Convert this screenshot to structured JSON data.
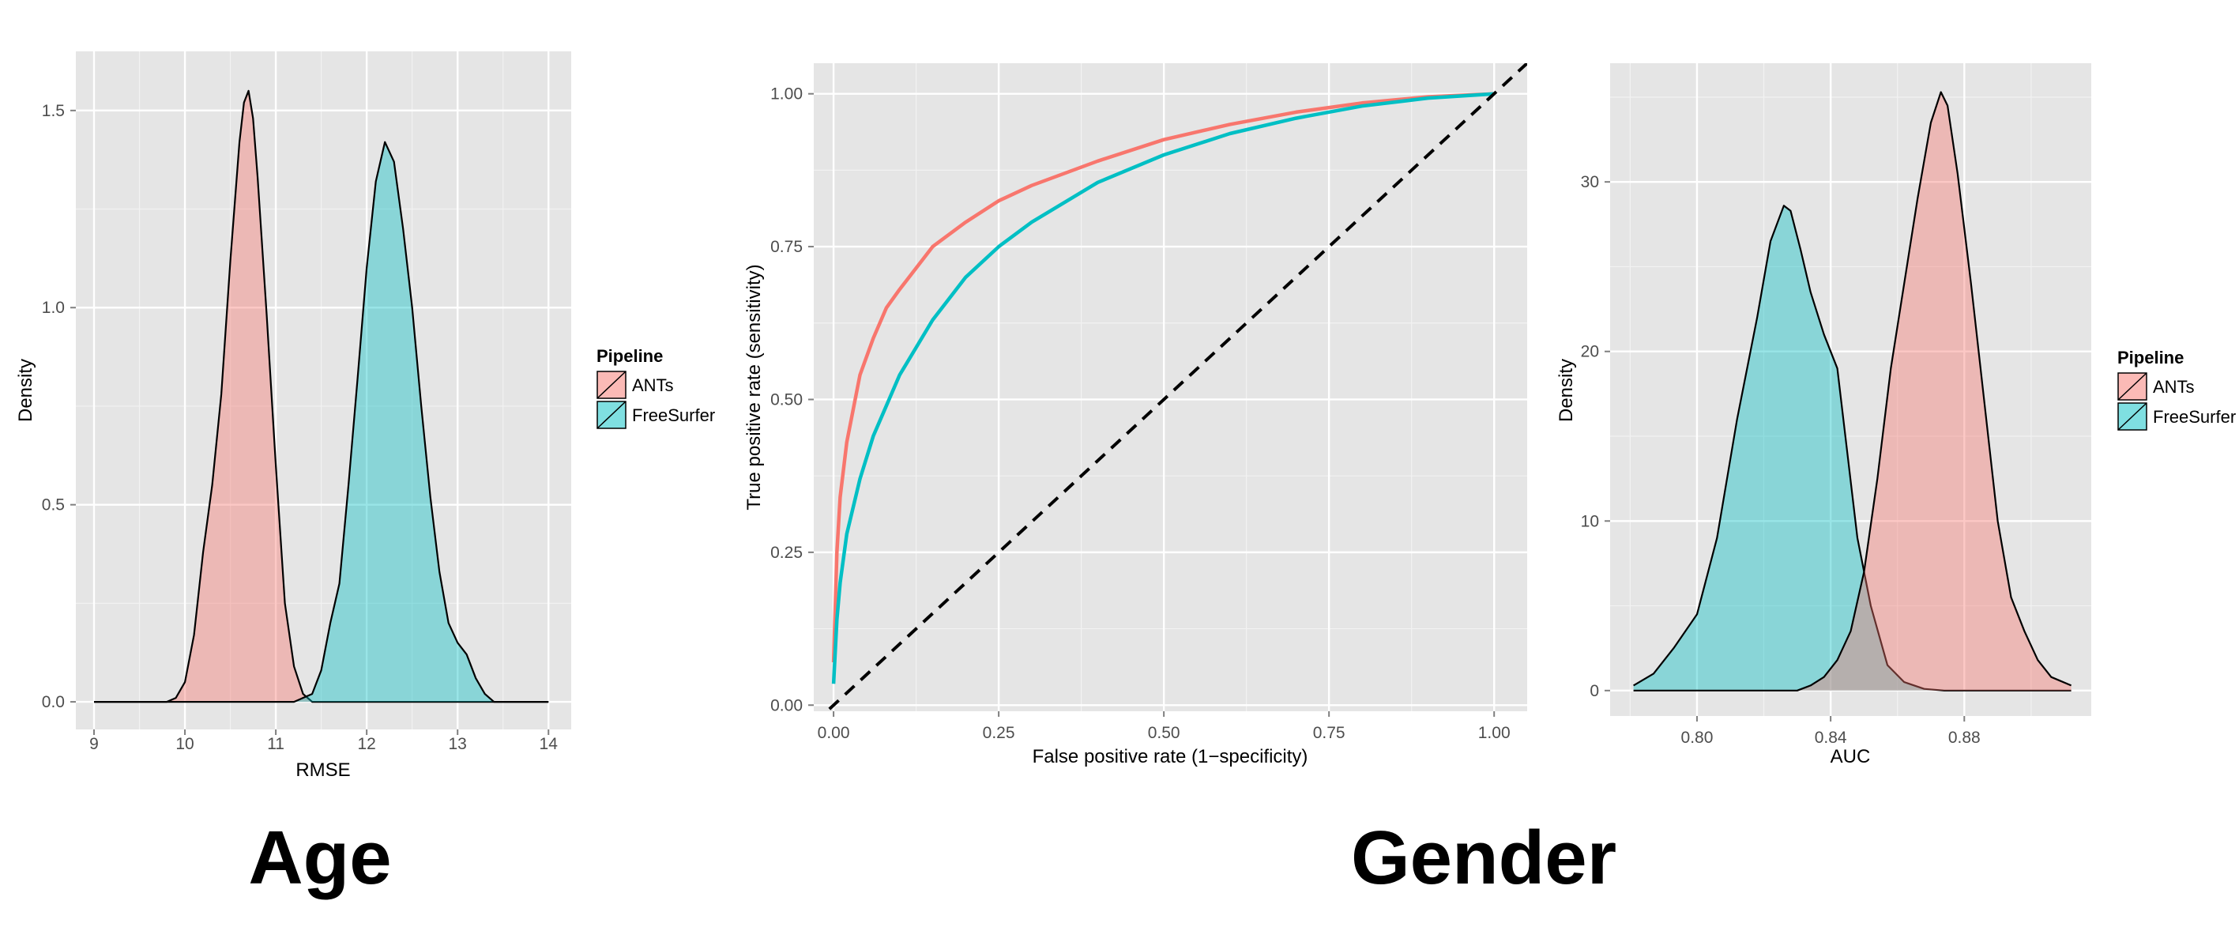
{
  "colors": {
    "ANTs": "#F8766D",
    "FreeSurfer": "#00BFC4",
    "panel_bg": "#E5E5E5",
    "grid_major": "#FFFFFF",
    "grid_minor": "#F2F2F2"
  },
  "captions": {
    "age": "Age",
    "gender": "Gender"
  },
  "chart_data": [
    {
      "id": "age-rmse-density",
      "type": "area",
      "title": "",
      "xlabel": "RMSE",
      "ylabel": "Density",
      "xlim": [
        8.8,
        14.25
      ],
      "ylim": [
        -0.07,
        1.65
      ],
      "xticks": [
        9,
        10,
        11,
        12,
        13,
        14
      ],
      "xtick_labels": [
        "9",
        "10",
        "11",
        "12",
        "13",
        "14"
      ],
      "yticks": [
        0.0,
        0.5,
        1.0,
        1.5
      ],
      "ytick_labels": [
        "0.0",
        "0.5",
        "1.0",
        "1.5"
      ],
      "grid": true,
      "legend": {
        "title": "Pipeline",
        "position": "right",
        "entries": [
          "ANTs",
          "FreeSurfer"
        ]
      },
      "series": [
        {
          "name": "ANTs",
          "color_key": "ANTs",
          "x": [
            9.0,
            9.8,
            9.9,
            10.0,
            10.1,
            10.2,
            10.3,
            10.4,
            10.5,
            10.6,
            10.65,
            10.7,
            10.75,
            10.8,
            10.9,
            11.0,
            11.1,
            11.2,
            11.3,
            11.4,
            11.5,
            14.0
          ],
          "y": [
            0.0,
            0.0,
            0.01,
            0.05,
            0.17,
            0.38,
            0.55,
            0.78,
            1.12,
            1.42,
            1.52,
            1.55,
            1.48,
            1.33,
            0.98,
            0.6,
            0.25,
            0.09,
            0.02,
            0.0,
            0.0,
            0.0
          ]
        },
        {
          "name": "FreeSurfer",
          "color_key": "FreeSurfer",
          "x": [
            9.0,
            11.2,
            11.4,
            11.5,
            11.6,
            11.7,
            11.8,
            11.9,
            12.0,
            12.1,
            12.2,
            12.3,
            12.4,
            12.5,
            12.6,
            12.7,
            12.8,
            12.9,
            13.0,
            13.1,
            13.2,
            13.3,
            13.4,
            14.0
          ],
          "y": [
            0.0,
            0.0,
            0.02,
            0.08,
            0.2,
            0.3,
            0.55,
            0.82,
            1.1,
            1.32,
            1.42,
            1.37,
            1.2,
            1.0,
            0.75,
            0.52,
            0.33,
            0.2,
            0.15,
            0.12,
            0.06,
            0.02,
            0.0,
            0.0
          ]
        }
      ]
    },
    {
      "id": "gender-roc",
      "type": "line",
      "title": "",
      "xlabel": "False positive rate (1−specificity)",
      "ylabel": "True positive rate (sensitivity)",
      "xlim": [
        -0.03,
        1.05
      ],
      "ylim": [
        -0.01,
        1.05
      ],
      "xticks": [
        0.0,
        0.25,
        0.5,
        0.75,
        1.0
      ],
      "xtick_labels": [
        "0.00",
        "0.25",
        "0.50",
        "0.75",
        "1.00"
      ],
      "yticks": [
        0.0,
        0.25,
        0.5,
        0.75,
        1.0
      ],
      "ytick_labels": [
        "0.00",
        "0.25",
        "0.50",
        "0.75",
        "1.00"
      ],
      "grid": true,
      "series": [
        {
          "name": "ANTs",
          "color_key": "ANTs",
          "x": [
            0.0,
            0.005,
            0.01,
            0.02,
            0.04,
            0.06,
            0.08,
            0.1,
            0.15,
            0.2,
            0.25,
            0.3,
            0.4,
            0.5,
            0.6,
            0.7,
            0.8,
            0.9,
            1.0
          ],
          "y": [
            0.07,
            0.25,
            0.34,
            0.43,
            0.54,
            0.6,
            0.65,
            0.68,
            0.75,
            0.79,
            0.825,
            0.85,
            0.89,
            0.925,
            0.95,
            0.97,
            0.985,
            0.995,
            1.0
          ]
        },
        {
          "name": "FreeSurfer",
          "color_key": "FreeSurfer",
          "x": [
            0.0,
            0.005,
            0.01,
            0.02,
            0.04,
            0.06,
            0.08,
            0.1,
            0.15,
            0.2,
            0.25,
            0.3,
            0.4,
            0.5,
            0.6,
            0.7,
            0.8,
            0.9,
            1.0
          ],
          "y": [
            0.035,
            0.14,
            0.2,
            0.28,
            0.37,
            0.44,
            0.49,
            0.54,
            0.63,
            0.7,
            0.75,
            0.79,
            0.855,
            0.9,
            0.935,
            0.96,
            0.98,
            0.993,
            1.0
          ]
        },
        {
          "name": "",
          "color_key": "chance",
          "dashed": true,
          "x": [
            -0.03,
            1.05
          ],
          "y": [
            -0.03,
            1.05
          ]
        }
      ]
    },
    {
      "id": "gender-auc-density",
      "type": "area",
      "title": "",
      "xlabel": "AUC",
      "ylabel": "Density",
      "xlim": [
        0.774,
        0.918
      ],
      "ylim": [
        -1.5,
        37
      ],
      "xticks": [
        0.8,
        0.84,
        0.88
      ],
      "xtick_labels": [
        "0.80",
        "0.84",
        "0.88"
      ],
      "yticks": [
        0,
        10,
        20,
        30
      ],
      "ytick_labels": [
        "0",
        "10",
        "20",
        "30"
      ],
      "grid": true,
      "legend": {
        "title": "Pipeline",
        "position": "right",
        "entries": [
          "ANTs",
          "FreeSurfer"
        ]
      },
      "series": [
        {
          "name": "FreeSurfer",
          "color_key": "FreeSurfer",
          "x": [
            0.781,
            0.787,
            0.793,
            0.8,
            0.806,
            0.812,
            0.818,
            0.822,
            0.826,
            0.828,
            0.831,
            0.834,
            0.838,
            0.842,
            0.845,
            0.848,
            0.852,
            0.857,
            0.862,
            0.868,
            0.874,
            0.88,
            0.888,
            0.9,
            0.912
          ],
          "y": [
            0.3,
            1.0,
            2.5,
            4.5,
            9.0,
            16.0,
            22.0,
            26.5,
            28.6,
            28.3,
            26.0,
            23.5,
            21.0,
            19.0,
            14.0,
            9.0,
            5.0,
            1.5,
            0.5,
            0.1,
            0.0,
            0.0,
            0.0,
            0.0,
            0.0
          ]
        },
        {
          "name": "ANTs",
          "color_key": "ANTs",
          "x": [
            0.781,
            0.83,
            0.834,
            0.838,
            0.842,
            0.846,
            0.85,
            0.854,
            0.858,
            0.862,
            0.866,
            0.87,
            0.873,
            0.875,
            0.878,
            0.882,
            0.886,
            0.89,
            0.894,
            0.898,
            0.902,
            0.906,
            0.912
          ],
          "y": [
            0.0,
            0.0,
            0.3,
            0.8,
            1.8,
            3.5,
            7.0,
            12.5,
            19.0,
            24.0,
            29.0,
            33.5,
            35.3,
            34.5,
            30.5,
            24.0,
            17.0,
            10.0,
            5.5,
            3.5,
            1.8,
            0.8,
            0.3
          ]
        }
      ]
    }
  ]
}
